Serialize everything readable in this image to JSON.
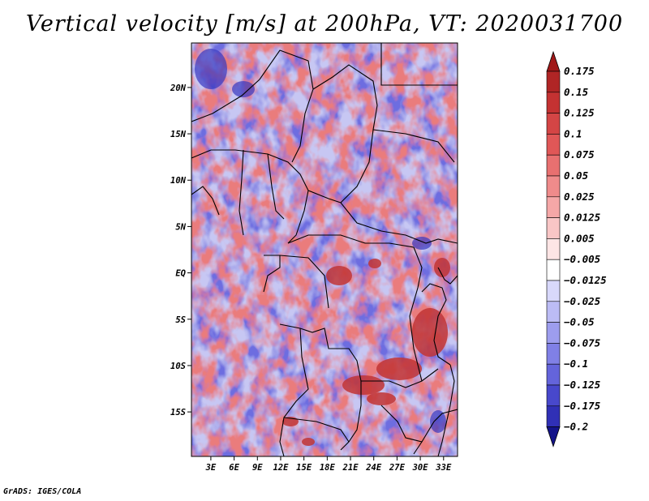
{
  "chart_data": {
    "type": "heatmap",
    "title": "Vertical velocity [m/s] at 200hPa, VT: 2020031700",
    "variable": "Vertical velocity",
    "units": "m/s",
    "level": "200hPa",
    "valid_time": "2020031700",
    "x_ticks": [
      {
        "value": 3,
        "label": "3E"
      },
      {
        "value": 6,
        "label": "6E"
      },
      {
        "value": 9,
        "label": "9E"
      },
      {
        "value": 12,
        "label": "12E"
      },
      {
        "value": 15,
        "label": "15E"
      },
      {
        "value": 18,
        "label": "18E"
      },
      {
        "value": 21,
        "label": "21E"
      },
      {
        "value": 24,
        "label": "24E"
      },
      {
        "value": 27,
        "label": "27E"
      },
      {
        "value": 30,
        "label": "30E"
      },
      {
        "value": 33,
        "label": "33E"
      }
    ],
    "y_ticks": [
      {
        "value": 20,
        "label": "20N"
      },
      {
        "value": 15,
        "label": "15N"
      },
      {
        "value": 10,
        "label": "10N"
      },
      {
        "value": 5,
        "label": "5N"
      },
      {
        "value": 0,
        "label": "EQ"
      },
      {
        "value": -5,
        "label": "5S"
      },
      {
        "value": -10,
        "label": "10S"
      },
      {
        "value": -15,
        "label": "15S"
      }
    ],
    "xlim": [
      0.5,
      34.8
    ],
    "ylim": [
      -19.8,
      24.8
    ],
    "colorbar": {
      "levels": [
        "0.175",
        "0.15",
        "0.125",
        "0.1",
        "0.075",
        "0.05",
        "0.025",
        "0.0125",
        "0.005",
        "-0.005",
        "-0.0125",
        "-0.025",
        "-0.05",
        "-0.075",
        "-0.1",
        "-0.125",
        "-0.175",
        "-0.2"
      ],
      "colors": [
        "#b02525",
        "#c43232",
        "#d44545",
        "#e05757",
        "#e87070",
        "#ef8b8b",
        "#f5a7a7",
        "#f9c6c6",
        "#fde5e5",
        "#ffffff",
        "#d8d8fb",
        "#bcbcf5",
        "#9d9dee",
        "#8080e6",
        "#6464db",
        "#4848cc",
        "#3030b6",
        "#1c1c9a"
      ],
      "top_cap_color": "#a01818",
      "bottom_cap_color": "#14148a"
    }
  },
  "footer": "GrADS: IGES/COLA"
}
